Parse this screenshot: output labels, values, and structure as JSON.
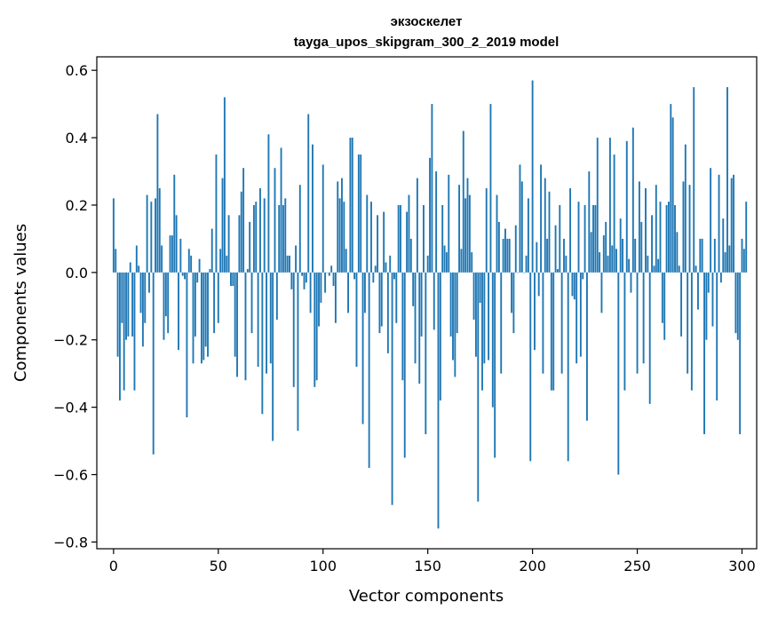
{
  "chart_data": {
    "type": "bar",
    "title": "экзоскелет",
    "subtitle": "tayga_upos_skipgram_300_2_2019 model",
    "xlabel": "Vector components",
    "ylabel": "Components values",
    "xlim": [
      -8,
      307
    ],
    "ylim": [
      -0.82,
      0.64
    ],
    "xticks": [
      0,
      50,
      100,
      150,
      200,
      250,
      300
    ],
    "xtick_labels": [
      "0",
      "50",
      "100",
      "150",
      "200",
      "250",
      "300"
    ],
    "yticks": [
      0.6,
      0.4,
      0.2,
      0.0,
      -0.2,
      -0.4,
      -0.6,
      -0.8
    ],
    "ytick_labels": [
      "0.6",
      "0.4",
      "0.2",
      "0.0",
      "−0.2",
      "−0.4",
      "−0.6",
      "−0.8"
    ],
    "grid": false,
    "bar_color": "#1f77b4",
    "values": [
      0.22,
      0.07,
      -0.25,
      -0.38,
      -0.15,
      -0.35,
      -0.2,
      -0.19,
      0.03,
      -0.19,
      -0.35,
      0.08,
      0.02,
      -0.12,
      -0.22,
      -0.15,
      0.23,
      -0.06,
      0.21,
      -0.54,
      0.22,
      0.47,
      0.25,
      0.08,
      -0.2,
      -0.13,
      -0.18,
      0.11,
      0.11,
      0.29,
      0.17,
      -0.23,
      0.1,
      -0.01,
      -0.02,
      -0.43,
      0.07,
      0.05,
      -0.27,
      -0.19,
      -0.03,
      0.04,
      -0.27,
      -0.26,
      -0.22,
      -0.25,
      0.01,
      0.13,
      -0.18,
      0.35,
      -0.15,
      0.07,
      0.28,
      0.52,
      0.05,
      0.17,
      -0.04,
      -0.04,
      -0.25,
      -0.31,
      0.17,
      0.24,
      0.31,
      -0.32,
      0.01,
      0.15,
      -0.18,
      0.2,
      0.21,
      -0.28,
      0.25,
      -0.42,
      0.22,
      -0.3,
      0.41,
      -0.27,
      -0.5,
      0.31,
      -0.14,
      0.2,
      0.37,
      0.2,
      0.22,
      0.05,
      0.05,
      -0.05,
      -0.34,
      0.08,
      -0.47,
      0.26,
      -0.01,
      -0.05,
      -0.03,
      0.47,
      -0.12,
      0.38,
      -0.34,
      -0.32,
      -0.16,
      -0.09,
      0.32,
      -0.06,
      0.0,
      -0.01,
      0.02,
      -0.04,
      -0.15,
      0.27,
      0.22,
      0.28,
      0.21,
      0.07,
      -0.12,
      0.4,
      0.4,
      -0.02,
      -0.28,
      0.35,
      0.35,
      -0.45,
      -0.12,
      0.23,
      -0.58,
      0.21,
      -0.03,
      0.02,
      0.17,
      -0.18,
      -0.16,
      0.18,
      0.03,
      -0.24,
      0.05,
      -0.69,
      -0.02,
      -0.15,
      0.2,
      0.2,
      -0.32,
      -0.55,
      0.18,
      0.23,
      0.1,
      -0.1,
      -0.27,
      0.28,
      -0.33,
      -0.19,
      0.2,
      -0.48,
      0.05,
      0.34,
      0.5,
      -0.17,
      0.3,
      -0.76,
      -0.38,
      0.2,
      0.08,
      0.06,
      0.29,
      -0.19,
      -0.26,
      -0.31,
      -0.18,
      0.26,
      0.07,
      0.42,
      0.22,
      0.28,
      0.23,
      0.06,
      -0.14,
      -0.25,
      -0.68,
      -0.09,
      -0.35,
      -0.27,
      0.25,
      -0.26,
      0.5,
      -0.4,
      -0.55,
      0.23,
      0.15,
      -0.3,
      0.1,
      0.13,
      0.1,
      0.1,
      -0.12,
      -0.18,
      0.14,
      0.0,
      0.32,
      0.27,
      0.0,
      0.05,
      0.22,
      -0.56,
      0.57,
      -0.23,
      0.09,
      -0.07,
      0.32,
      -0.3,
      0.28,
      0.1,
      0.24,
      -0.35,
      -0.35,
      0.14,
      0.01,
      0.2,
      -0.3,
      0.1,
      0.05,
      -0.56,
      0.25,
      -0.07,
      -0.08,
      -0.27,
      0.21,
      -0.25,
      -0.02,
      0.2,
      -0.44,
      0.3,
      0.12,
      0.2,
      0.2,
      0.4,
      0.06,
      -0.12,
      0.11,
      0.15,
      0.05,
      0.4,
      0.08,
      0.35,
      0.07,
      -0.6,
      0.16,
      0.1,
      -0.35,
      0.39,
      0.04,
      -0.06,
      0.43,
      0.1,
      -0.3,
      0.27,
      0.15,
      -0.27,
      0.25,
      0.05,
      -0.39,
      0.17,
      0.02,
      0.26,
      0.04,
      0.21,
      -0.15,
      -0.2,
      0.2,
      0.21,
      0.5,
      0.46,
      0.2,
      0.12,
      0.02,
      -0.19,
      0.27,
      0.38,
      -0.3,
      0.26,
      -0.35,
      0.55,
      0.02,
      -0.11,
      0.1,
      0.1,
      -0.48,
      -0.2,
      -0.06,
      0.31,
      -0.16,
      0.1,
      -0.38,
      0.29,
      -0.03,
      0.16,
      0.06,
      0.55,
      0.08,
      0.28,
      0.29,
      -0.18,
      -0.2,
      -0.48,
      0.1,
      0.07,
      0.21
    ]
  }
}
